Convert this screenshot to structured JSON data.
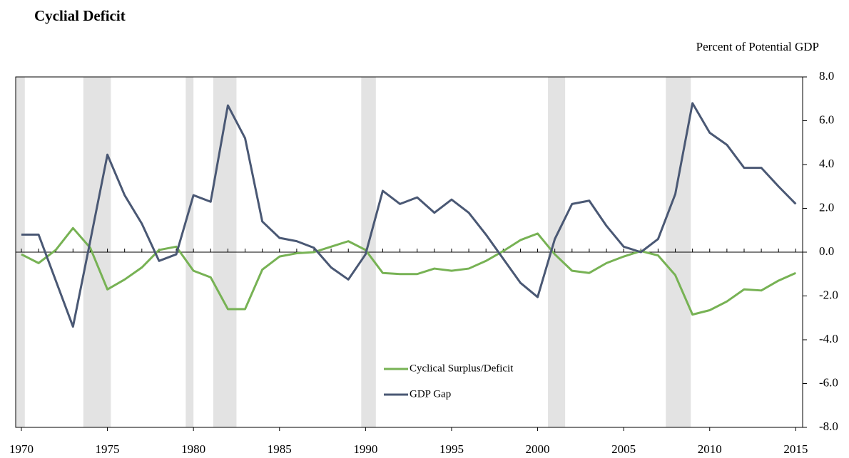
{
  "chart_data": {
    "type": "line",
    "title": "Cyclial Deficit",
    "y_axis_label": "Percent of Potential GDP",
    "x": [
      1970,
      1971,
      1972,
      1973,
      1974,
      1975,
      1976,
      1977,
      1978,
      1979,
      1980,
      1981,
      1982,
      1983,
      1984,
      1985,
      1986,
      1987,
      1988,
      1989,
      1990,
      1991,
      1992,
      1993,
      1994,
      1995,
      1996,
      1997,
      1998,
      1999,
      2000,
      2001,
      2002,
      2003,
      2004,
      2005,
      2006,
      2007,
      2008,
      2009,
      2010,
      2011,
      2012,
      2013,
      2014,
      2015
    ],
    "series": [
      {
        "name": "Cyclical Surplus/Deficit",
        "color": "#77b254",
        "values": [
          -0.1,
          -0.5,
          0.1,
          1.1,
          0.2,
          -1.7,
          -1.25,
          -0.7,
          0.1,
          0.25,
          -0.85,
          -1.15,
          -2.6,
          -2.6,
          -0.8,
          -0.2,
          -0.05,
          0.0,
          0.25,
          0.5,
          0.1,
          -0.95,
          -1.0,
          -1.0,
          -0.75,
          -0.85,
          -0.75,
          -0.4,
          0.05,
          0.55,
          0.85,
          -0.1,
          -0.85,
          -0.95,
          -0.5,
          -0.2,
          0.05,
          -0.15,
          -1.05,
          -2.85,
          -2.65,
          -2.25,
          -1.7,
          -1.75,
          -1.3,
          -0.95
        ]
      },
      {
        "name": "GDP Gap",
        "color": "#4a5874",
        "values": [
          0.8,
          0.8,
          -1.3,
          -3.4,
          0.5,
          4.45,
          2.6,
          1.3,
          -0.4,
          -0.1,
          2.6,
          2.3,
          6.7,
          5.2,
          1.4,
          0.65,
          0.5,
          0.2,
          -0.7,
          -1.25,
          -0.1,
          2.8,
          2.2,
          2.5,
          1.8,
          2.4,
          1.8,
          0.8,
          -0.3,
          -1.4,
          -2.05,
          0.6,
          2.2,
          2.35,
          1.2,
          0.25,
          0.0,
          0.6,
          2.65,
          6.8,
          5.45,
          4.9,
          3.85,
          3.85,
          3.0,
          2.2
        ]
      }
    ],
    "shaded_periods": [
      [
        1969.7,
        1970.2
      ],
      [
        1973.6,
        1975.2
      ],
      [
        1979.55,
        1980.0
      ],
      [
        1981.15,
        1982.5
      ],
      [
        1989.75,
        1990.6
      ],
      [
        2000.6,
        2001.6
      ],
      [
        2007.45,
        2008.9
      ]
    ],
    "xlim": [
      1969.67,
      2015.4
    ],
    "xticks": [
      1970,
      1975,
      1980,
      1985,
      1990,
      1995,
      2000,
      2005,
      2010,
      2015
    ],
    "ylim": [
      -8,
      8
    ],
    "yticks": [
      {
        "value": 8,
        "label": "8.0"
      },
      {
        "value": 6,
        "label": "6.0"
      },
      {
        "value": 4,
        "label": "4.0"
      },
      {
        "value": 2,
        "label": "2.0"
      },
      {
        "value": 0,
        "label": "0.0"
      },
      {
        "value": -2,
        "label": "-2.0"
      },
      {
        "value": -4,
        "label": "-4.0"
      },
      {
        "value": -6,
        "label": "-6.0"
      },
      {
        "value": -8,
        "label": "-8.0"
      }
    ],
    "shade_color": "#e3e3e3",
    "legend": "bottom-center"
  }
}
